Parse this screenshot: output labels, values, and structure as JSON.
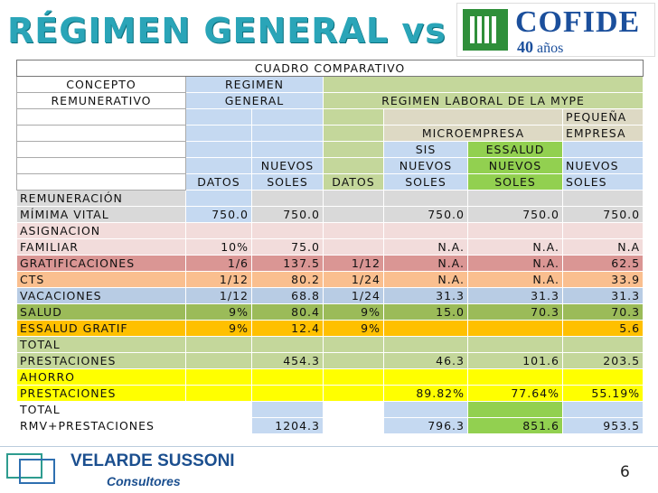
{
  "slide": {
    "title": "RÉGIMEN GENERAL vs MYPE",
    "page_number": "6"
  },
  "cofide": {
    "name": "COFIDE",
    "years_num": "40",
    "years_word": "años"
  },
  "footer": {
    "company": "VELARDE SUSSONI",
    "sub": "Consultores"
  },
  "table": {
    "caption": "CUADRO COMPARATIVO",
    "header": {
      "concepto_1": "CONCEPTO",
      "concepto_2": "REMUNERATIVO",
      "regimen_general_1": "REGIMEN",
      "regimen_general_2": "GENERAL",
      "regimen_mype": "REGIMEN LABORAL DE LA MYPE",
      "microempresa": "MICROEMPRESA",
      "pequena_1": "PEQUEÑA",
      "pequena_2": "EMPRESA",
      "datos_1": "DATOS",
      "nuevos_soles_1a": "NUEVOS",
      "nuevos_soles_1b": "SOLES",
      "datos_2": "DATOS",
      "sis_1": "SIS",
      "sis_2": "NUEVOS",
      "sis_3": "SOLES",
      "essalud_1": "ESSALUD",
      "essalud_2": "NUEVOS",
      "essalud_3": "SOLES",
      "pe_1": "NUEVOS",
      "pe_2": "SOLES"
    },
    "rows": [
      {
        "c1": "REMUNERACIÓN",
        "c2": "MÍMIMA VITAL",
        "v": [
          "750.0",
          "750.0",
          "",
          "750.0",
          "750.0",
          "750.0"
        ]
      },
      {
        "c1": "ASIGNACION",
        "c2": "FAMILIAR",
        "v": [
          "10%",
          "75.0",
          "",
          "N.A.",
          "N.A.",
          "N.A"
        ]
      },
      {
        "c1": "GRATIFICACIONES",
        "c2": "",
        "v": [
          "1/6",
          "137.5",
          "1/12",
          "N.A.",
          "N.A.",
          "62.5"
        ]
      },
      {
        "c1": "CTS",
        "c2": "",
        "v": [
          "1/12",
          "80.2",
          "1/24",
          "N.A.",
          "N.A.",
          "33.9"
        ]
      },
      {
        "c1": "VACACIONES",
        "c2": "",
        "v": [
          "1/12",
          "68.8",
          "1/24",
          "31.3",
          "31.3",
          "31.3"
        ]
      },
      {
        "c1": "SALUD",
        "c2": "",
        "v": [
          "9%",
          "80.4",
          "9%",
          "15.0",
          "70.3",
          "70.3"
        ]
      },
      {
        "c1": "ESSALUD GRATIF",
        "c2": "",
        "v": [
          "9%",
          "12.4",
          "9%",
          "",
          "",
          "5.6"
        ]
      },
      {
        "c1": "TOTAL",
        "c2": "PRESTACIONES",
        "v": [
          "",
          "454.3",
          "",
          "46.3",
          "101.6",
          "203.5"
        ]
      },
      {
        "c1": "AHORRO",
        "c2": "PRESTACIONES",
        "v": [
          "",
          "",
          "",
          "89.82%",
          "77.64%",
          "55.19%"
        ]
      },
      {
        "c1": "TOTAL",
        "c2": "RMV+PRESTACIONES",
        "v": [
          "",
          "1204.3",
          "",
          "796.3",
          "851.6",
          "953.5"
        ]
      }
    ]
  },
  "colors": {
    "title": "#2aa5b8",
    "blue_header": "#c5d9f1",
    "green_header": "#c4d79b",
    "tan_header": "#ddd9c4",
    "bright_green": "#92d050",
    "grey_row": "#d9d9d9",
    "pink_row": "#f2dcdb",
    "red_row": "#da9694",
    "orange_row": "#fabf8f",
    "blue_row": "#b8cce4",
    "green_row": "#9bbb59",
    "gold_row": "#ffc000",
    "olive_row": "#c4d79b",
    "yellow_row": "#ffff00",
    "white_row": "#ffffff"
  }
}
